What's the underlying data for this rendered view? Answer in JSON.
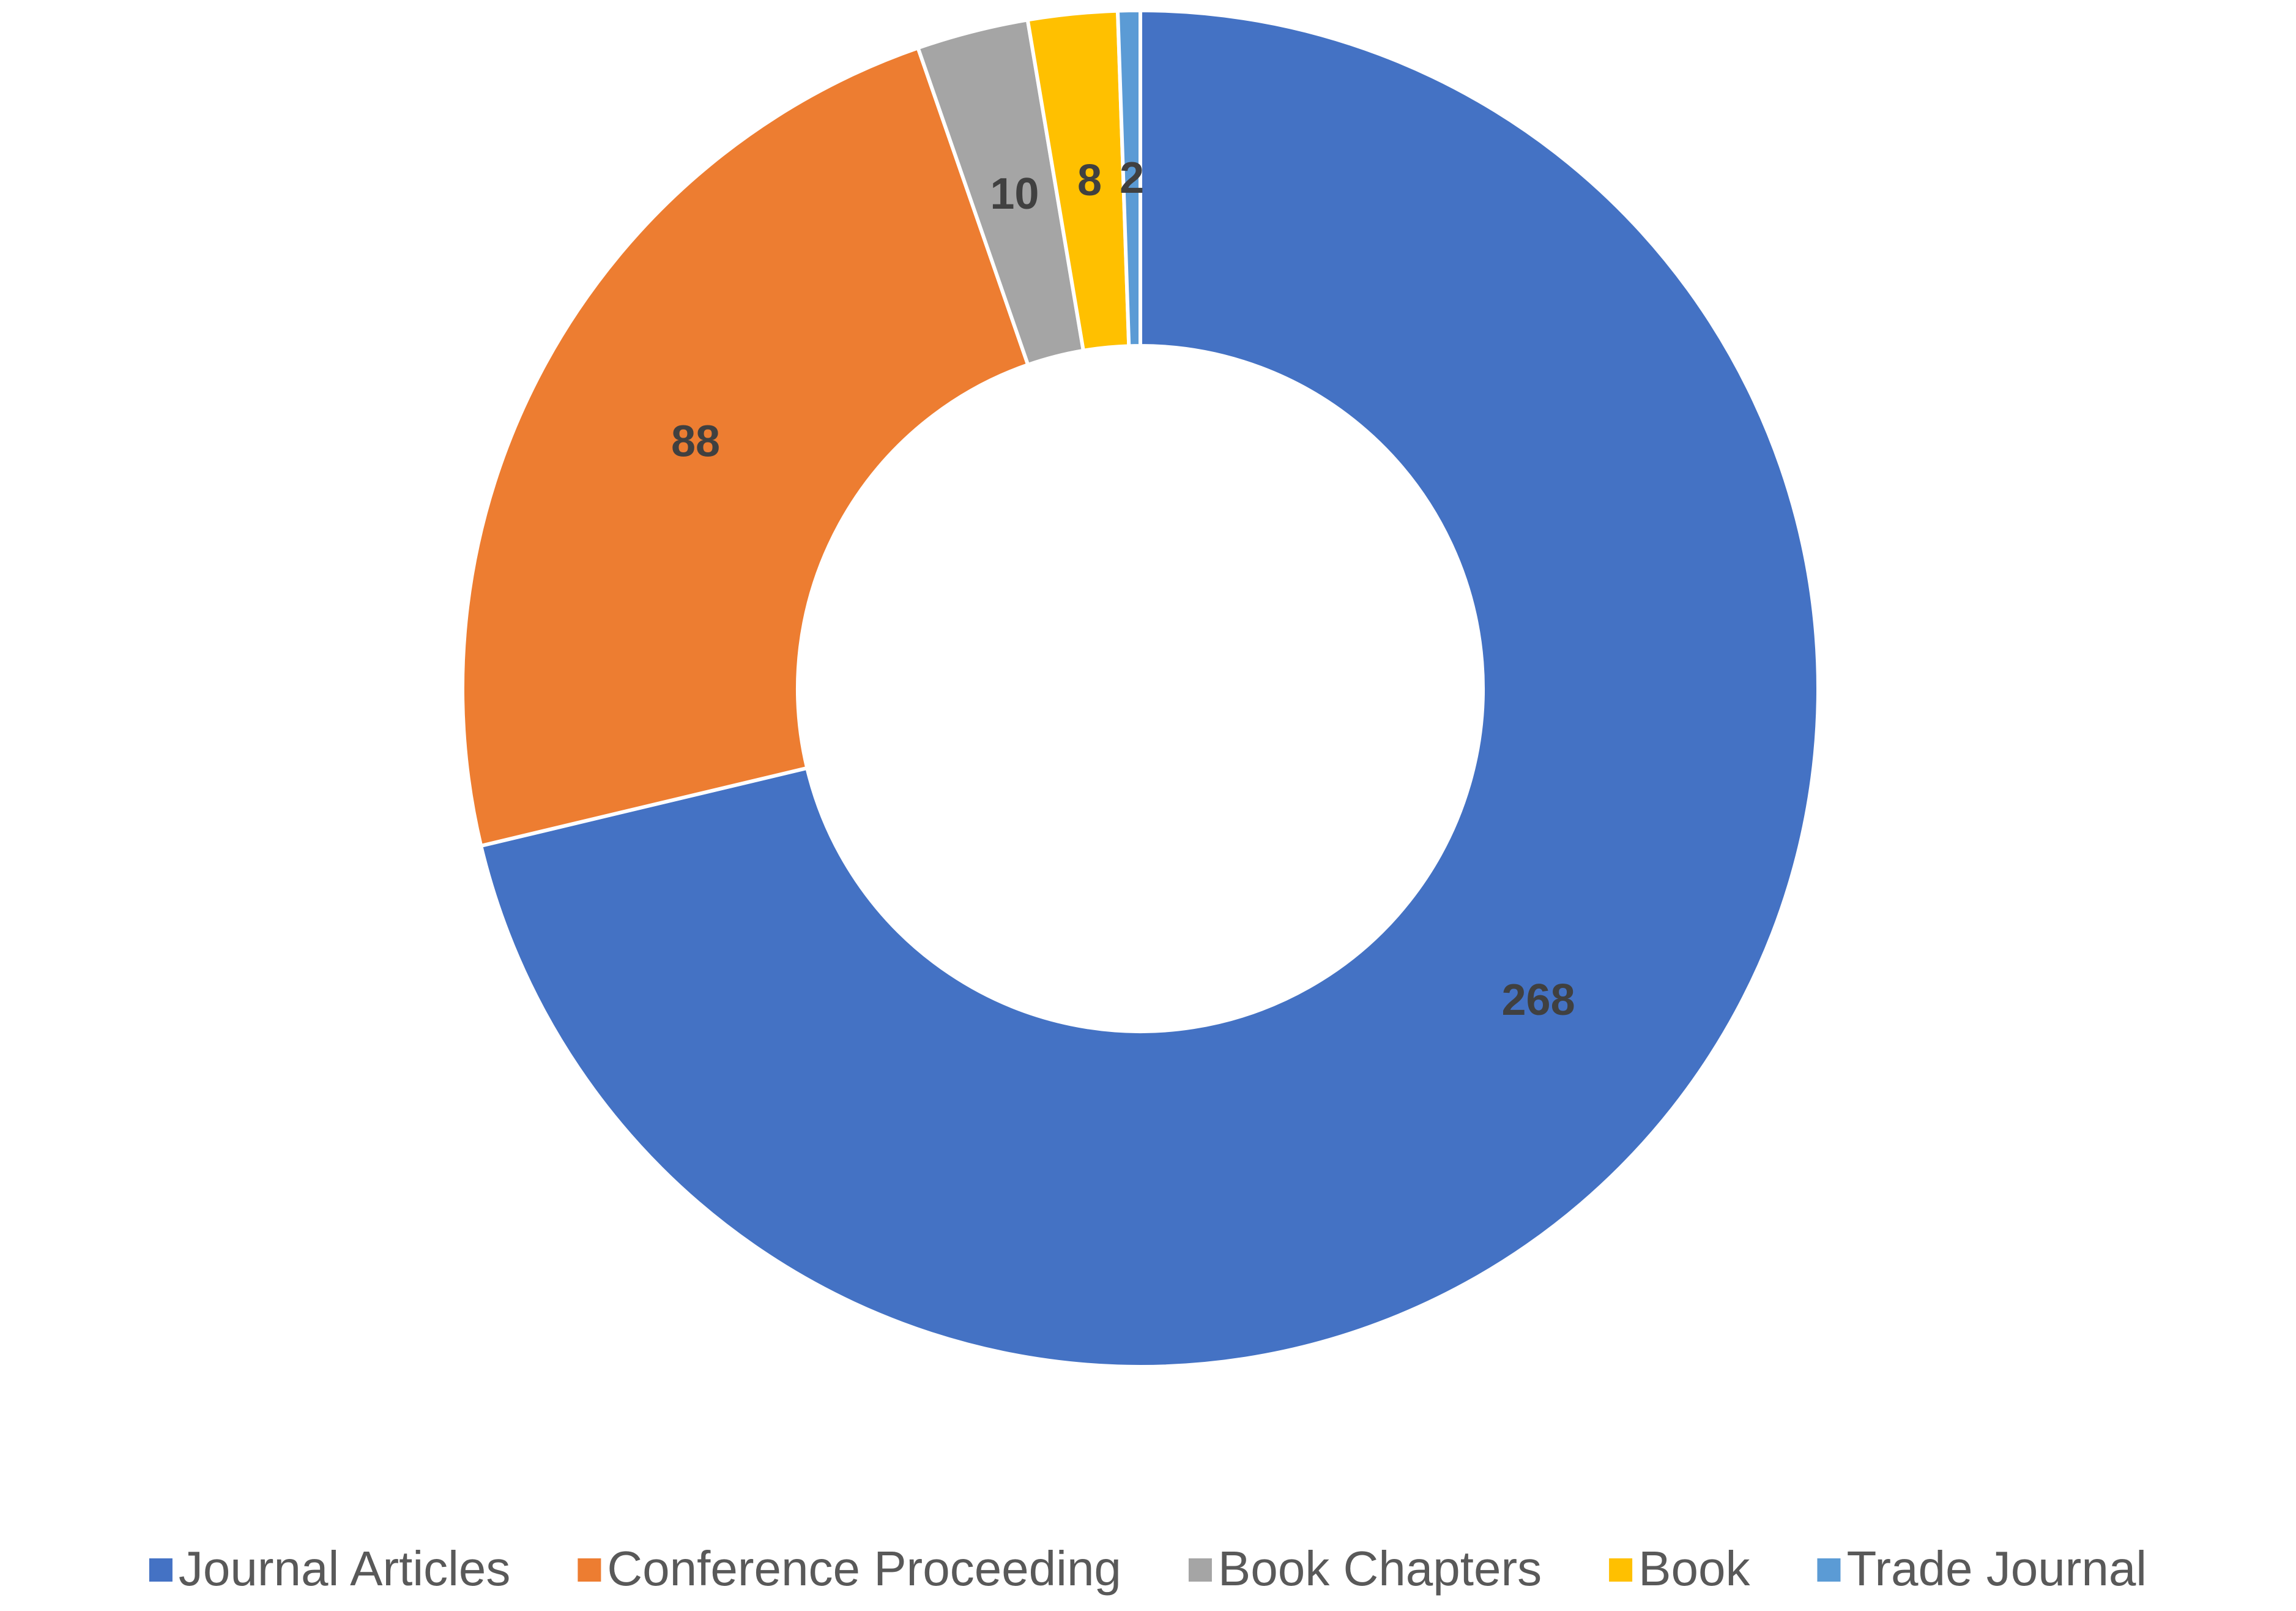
{
  "chart_data": {
    "type": "donut",
    "categories": [
      "Journal Articles",
      "Conference Proceeding",
      "Book Chapters",
      "Book",
      "Trade Journal"
    ],
    "values": [
      268,
      88,
      10,
      8,
      2
    ],
    "colors": [
      "#4472c4",
      "#ed7d31",
      "#a5a5a5",
      "#ffc000",
      "#5b9bd5"
    ],
    "legend": "bottom"
  }
}
